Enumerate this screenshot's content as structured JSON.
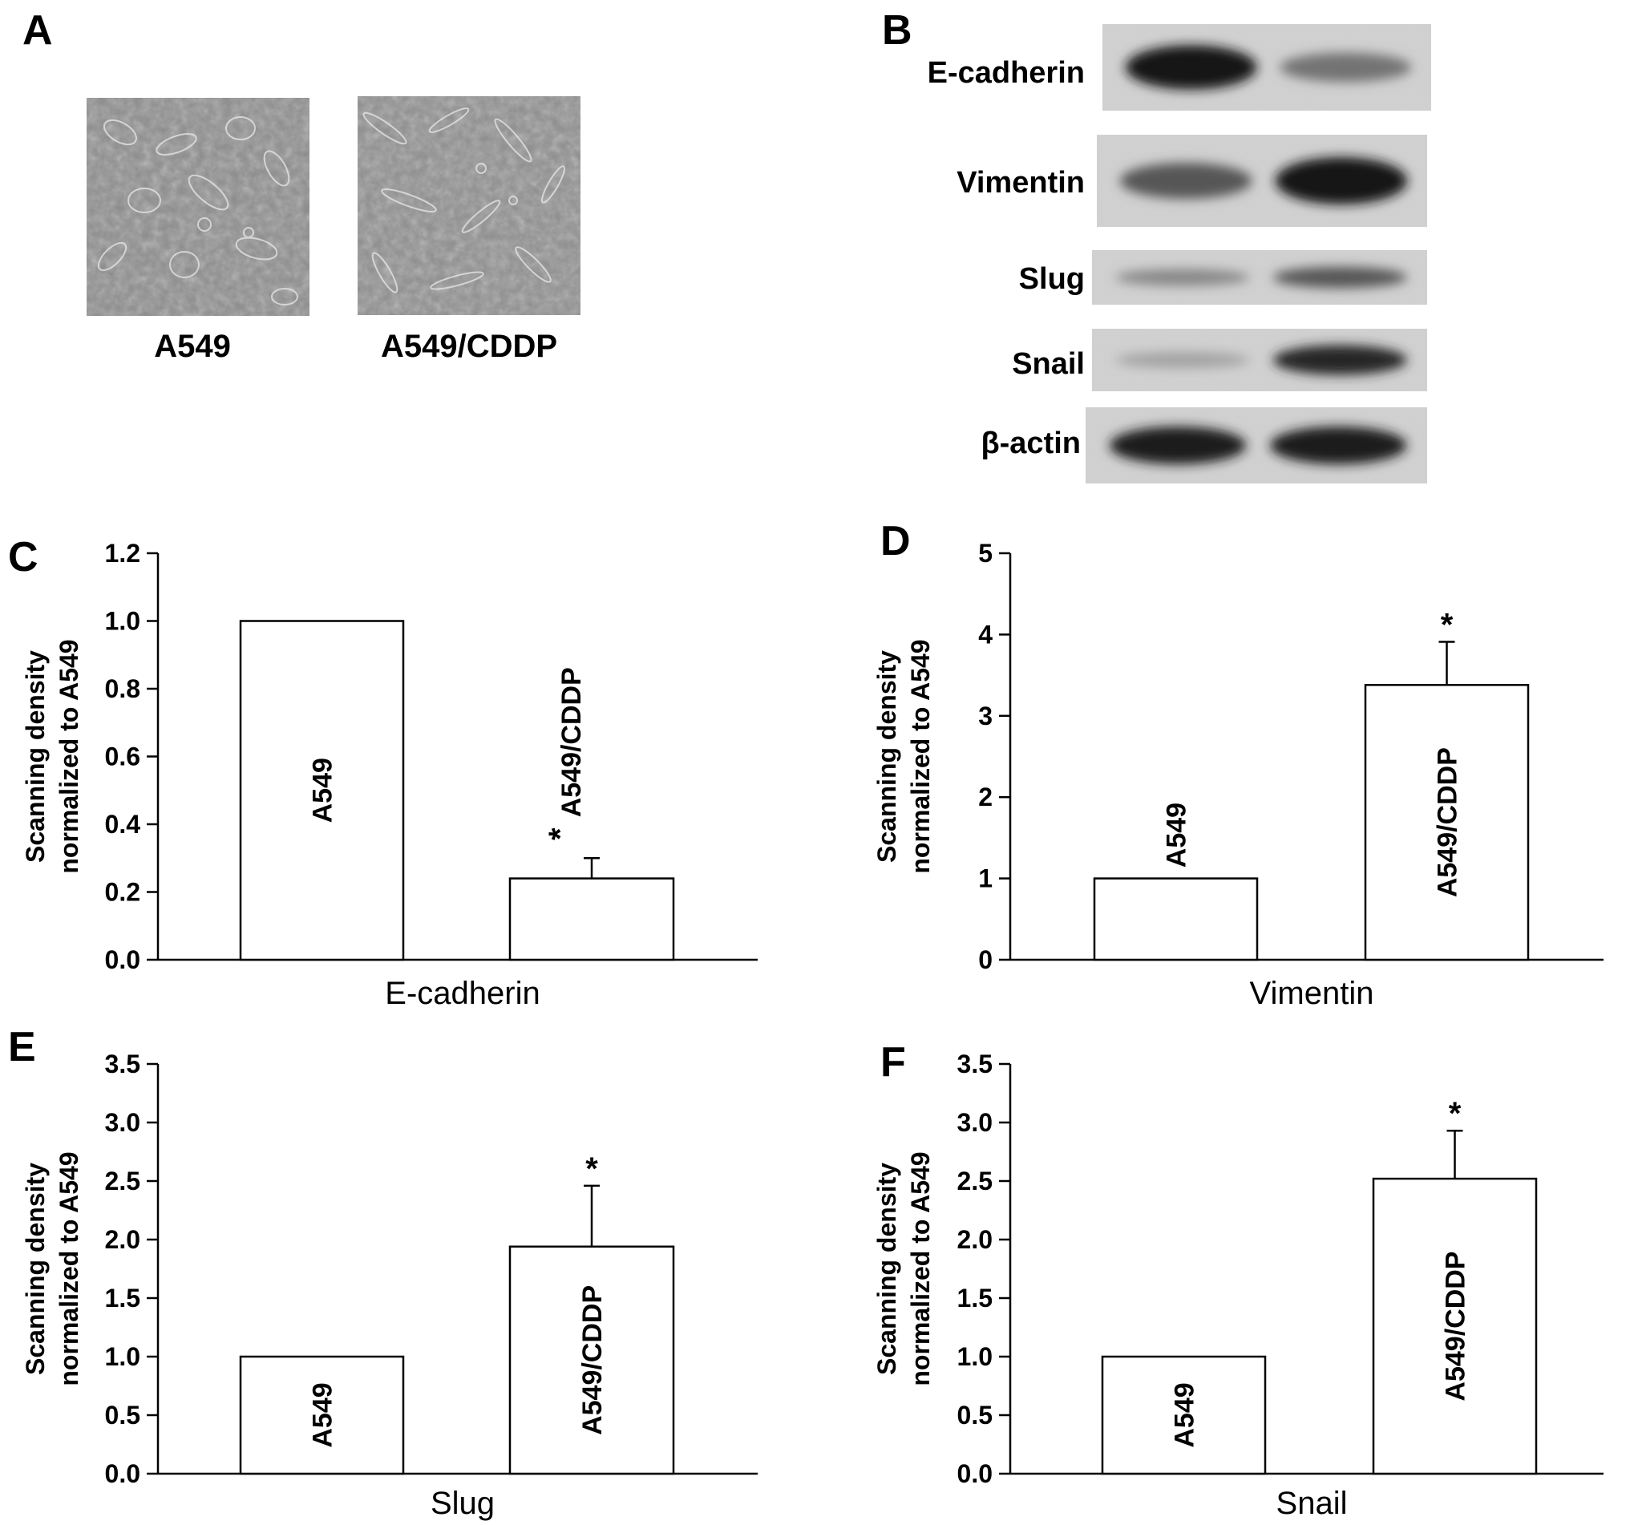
{
  "panel_a": {
    "letter": "A",
    "images": [
      {
        "caption": "A549"
      },
      {
        "caption": "A549/CDDP"
      }
    ]
  },
  "panel_b": {
    "letter": "B",
    "blots": [
      {
        "protein": "E-cadherin",
        "band_intensity": [
          0.95,
          0.45
        ]
      },
      {
        "protein": "Vimentin",
        "band_intensity": [
          0.6,
          0.95
        ]
      },
      {
        "protein": "Slug",
        "band_intensity": [
          0.35,
          0.6
        ]
      },
      {
        "protein": "Snail",
        "band_intensity": [
          0.2,
          0.85
        ]
      },
      {
        "protein": "β-actin",
        "band_intensity": [
          0.9,
          0.9
        ]
      }
    ]
  },
  "chart_data": [
    {
      "panel": "C",
      "type": "bar",
      "categories": [
        "A549",
        "A549/CDDP"
      ],
      "values": [
        1.0,
        0.24
      ],
      "errors": [
        0,
        0.06
      ],
      "significance": [
        "",
        "*"
      ],
      "xlabel": "E-cadherin",
      "ylabel_lines": [
        "Scanning density",
        "normalized to A549"
      ],
      "ylim": [
        0,
        1.2
      ],
      "yticks": [
        "0.0",
        "0.2",
        "0.4",
        "0.6",
        "0.8",
        "1.0",
        "1.2"
      ],
      "grid": false
    },
    {
      "panel": "D",
      "type": "bar",
      "categories": [
        "A549",
        "A549/CDDP"
      ],
      "values": [
        1.0,
        3.38
      ],
      "errors": [
        0,
        0.53
      ],
      "significance": [
        "",
        "*"
      ],
      "xlabel": "Vimentin",
      "ylabel_lines": [
        "Scanning density",
        "normalized to A549"
      ],
      "ylim": [
        0,
        5
      ],
      "yticks": [
        "0",
        "1",
        "2",
        "3",
        "4",
        "5"
      ],
      "grid": false
    },
    {
      "panel": "E",
      "type": "bar",
      "categories": [
        "A549",
        "A549/CDDP"
      ],
      "values": [
        1.0,
        1.94
      ],
      "errors": [
        0,
        0.52
      ],
      "significance": [
        "",
        "*"
      ],
      "xlabel": "Slug",
      "ylabel_lines": [
        "Scanning density",
        "normalized to A549"
      ],
      "ylim": [
        0,
        3.5
      ],
      "yticks": [
        "0.0",
        "0.5",
        "1.0",
        "1.5",
        "2.0",
        "2.5",
        "3.0",
        "3.5"
      ],
      "grid": false
    },
    {
      "panel": "F",
      "type": "bar",
      "categories": [
        "A549",
        "A549/CDDP"
      ],
      "values": [
        1.0,
        2.52
      ],
      "errors": [
        0,
        0.41
      ],
      "significance": [
        "",
        "*"
      ],
      "xlabel": "Snail",
      "ylabel_lines": [
        "Scanning density",
        "normalized to A549"
      ],
      "ylim": [
        0,
        3.5
      ],
      "yticks": [
        "0.0",
        "0.5",
        "1.0",
        "1.5",
        "2.0",
        "2.5",
        "3.0",
        "3.5"
      ],
      "grid": false
    }
  ]
}
